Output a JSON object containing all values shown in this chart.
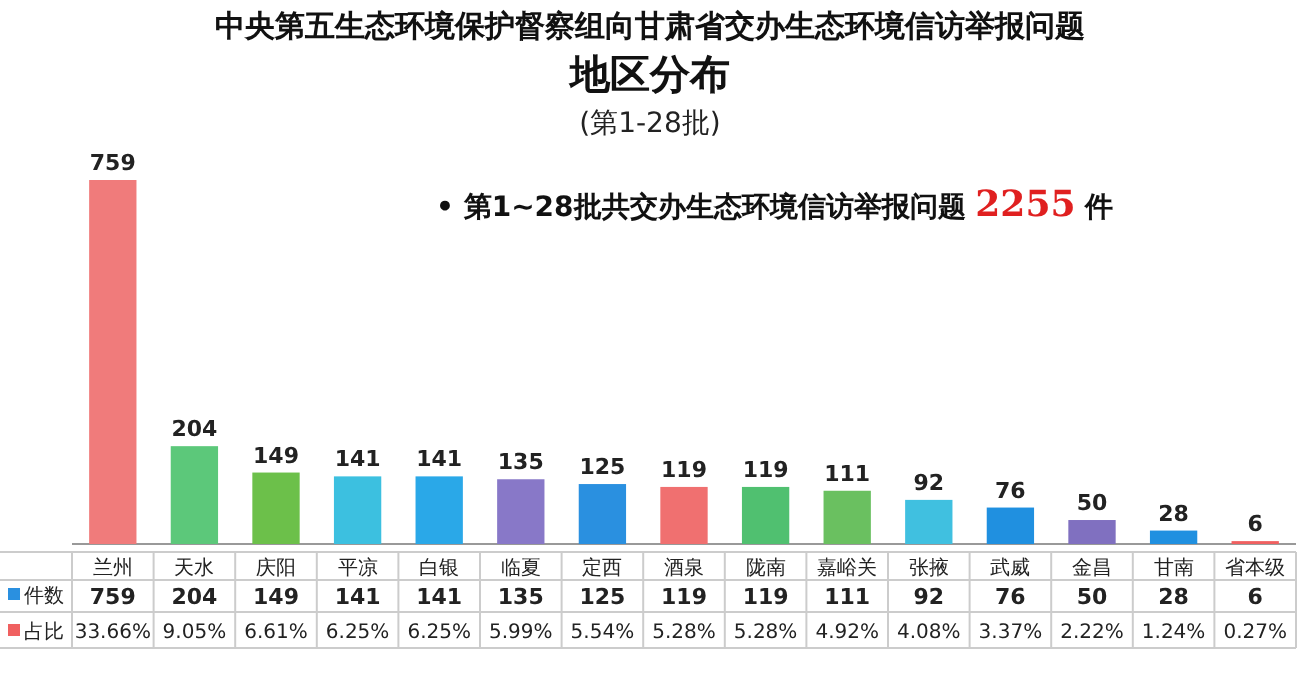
{
  "chart_data": {
    "type": "bar",
    "title": "中央第五生态环境保护督察组向甘肃省交办生态环境信访举报问题",
    "subtitle": "地区分布",
    "categories": [
      "兰州",
      "天水",
      "庆阳",
      "平凉",
      "白银",
      "临夏",
      "定西",
      "酒泉",
      "陇南",
      "嘉峪关",
      "张掖",
      "武威",
      "金昌",
      "甘南",
      "省本级"
    ],
    "series": [
      {
        "name": "件数",
        "color": "#2a90e0",
        "values": [
          759,
          204,
          149,
          141,
          141,
          135,
          125,
          119,
          119,
          111,
          92,
          76,
          50,
          28,
          6
        ],
        "value_labels": [
          "759",
          "204",
          "149",
          "141",
          "141",
          "135",
          "125",
          "119",
          "119",
          "111",
          "92",
          "76",
          "50",
          "28",
          "6"
        ],
        "colors": [
          "#f07b7b",
          "#5cc87a",
          "#6cc04a",
          "#3cc0e0",
          "#2aa8e8",
          "#8878c8",
          "#2a90e0",
          "#f07070",
          "#50c070",
          "#6ac060",
          "#40c0e0",
          "#2090e0",
          "#8070c0",
          "#2090e0",
          "#f06060"
        ]
      }
    ],
    "annotations": [
      "(第1-28批)",
      "• 第1~28批共交办生态环境信访举报问题 **2255** 件",
      "占比",
      "33.66%",
      "9.05%",
      "6.61%",
      "6.25%",
      "6.25%",
      "5.99%",
      "5.54%",
      "5.28%",
      "5.28%",
      "4.92%",
      "4.08%",
      "3.37%",
      "2.22%",
      "1.24%",
      "0.27%",
      "759",
      "204",
      "149",
      "141",
      "141",
      "135",
      "125",
      "119",
      "119",
      "111",
      "92",
      "76",
      "50",
      "28",
      "6"
    ]
  }
}
